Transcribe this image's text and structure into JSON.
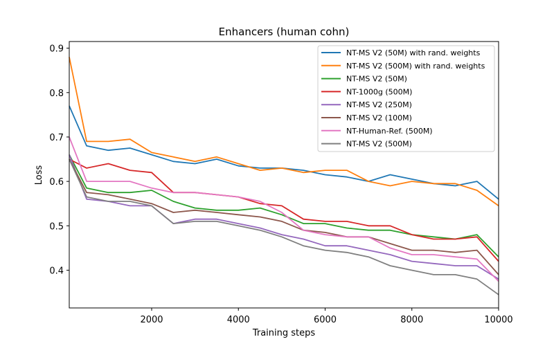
{
  "chart_data": {
    "type": "line",
    "title": "Enhancers (human cohn)",
    "xlabel": "Training steps",
    "ylabel": "Loss",
    "xlim": [
      100,
      10000
    ],
    "ylim": [
      0.315,
      0.915
    ],
    "xticks": [
      2000,
      4000,
      6000,
      8000,
      10000
    ],
    "yticks": [
      0.4,
      0.5,
      0.6,
      0.7,
      0.8,
      0.9
    ],
    "grid": false,
    "legend_position": "top-right",
    "x": [
      100,
      500,
      1000,
      1500,
      2000,
      2500,
      3000,
      3500,
      4000,
      4500,
      5000,
      5500,
      6000,
      6500,
      7000,
      7500,
      8000,
      8500,
      9000,
      9500,
      10000
    ],
    "series": [
      {
        "name": "NT-MS V2 (50M) with rand. weights",
        "color": "#1f77b4",
        "values": [
          0.77,
          0.68,
          0.67,
          0.675,
          0.66,
          0.645,
          0.64,
          0.65,
          0.635,
          0.63,
          0.63,
          0.625,
          0.615,
          0.61,
          0.6,
          0.615,
          0.605,
          0.595,
          0.59,
          0.6,
          0.56
        ]
      },
      {
        "name": "NT-MS V2 (500M) with rand. weights",
        "color": "#ff7f0e",
        "values": [
          0.88,
          0.69,
          0.69,
          0.695,
          0.665,
          0.655,
          0.645,
          0.655,
          0.64,
          0.625,
          0.63,
          0.62,
          0.625,
          0.625,
          0.6,
          0.59,
          0.6,
          0.595,
          0.595,
          0.58,
          0.545
        ]
      },
      {
        "name": "NT-MS V2 (50M)",
        "color": "#2ca02c",
        "values": [
          0.66,
          0.585,
          0.575,
          0.575,
          0.58,
          0.555,
          0.54,
          0.535,
          0.535,
          0.54,
          0.525,
          0.505,
          0.505,
          0.495,
          0.49,
          0.49,
          0.48,
          0.475,
          0.47,
          0.48,
          0.43
        ]
      },
      {
        "name": "NT-1000g (500M)",
        "color": "#d62728",
        "values": [
          0.65,
          0.63,
          0.64,
          0.625,
          0.62,
          0.575,
          0.575,
          0.57,
          0.565,
          0.55,
          0.545,
          0.515,
          0.51,
          0.51,
          0.5,
          0.5,
          0.48,
          0.47,
          0.47,
          0.475,
          0.42
        ]
      },
      {
        "name": "NT-MS V2 (250M)",
        "color": "#9467bd",
        "values": [
          0.66,
          0.56,
          0.555,
          0.545,
          0.545,
          0.505,
          0.515,
          0.515,
          0.505,
          0.495,
          0.48,
          0.47,
          0.455,
          0.455,
          0.445,
          0.435,
          0.42,
          0.415,
          0.41,
          0.41,
          0.38
        ]
      },
      {
        "name": "NT-MS V2 (100M)",
        "color": "#8c564b",
        "values": [
          0.65,
          0.575,
          0.57,
          0.56,
          0.55,
          0.53,
          0.535,
          0.53,
          0.525,
          0.52,
          0.51,
          0.49,
          0.485,
          0.475,
          0.475,
          0.46,
          0.445,
          0.445,
          0.44,
          0.445,
          0.39
        ]
      },
      {
        "name": "NT-Human-Ref. (500M)",
        "color": "#e377c2",
        "values": [
          0.7,
          0.6,
          0.6,
          0.6,
          0.585,
          0.575,
          0.575,
          0.57,
          0.565,
          0.555,
          0.53,
          0.49,
          0.48,
          0.475,
          0.475,
          0.45,
          0.435,
          0.435,
          0.43,
          0.425,
          0.375
        ]
      },
      {
        "name": "NT-MS V2 (500M)",
        "color": "#7f7f7f",
        "values": [
          0.65,
          0.565,
          0.555,
          0.555,
          0.545,
          0.505,
          0.51,
          0.51,
          0.5,
          0.49,
          0.475,
          0.455,
          0.445,
          0.44,
          0.43,
          0.41,
          0.4,
          0.39,
          0.39,
          0.38,
          0.345
        ]
      }
    ]
  }
}
